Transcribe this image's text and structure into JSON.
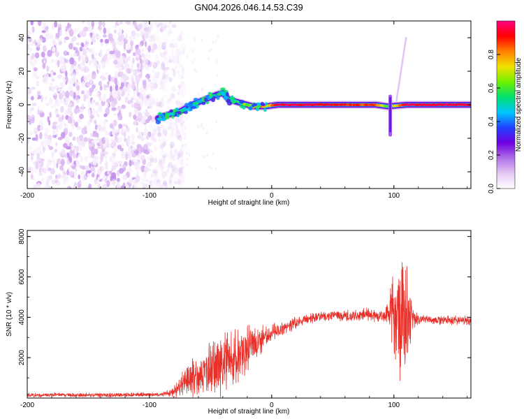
{
  "figure_title": "GN04.2026.046.14.53.C39",
  "colors": {
    "accent": "#e8302a",
    "axis": "#000000",
    "background": "#ffffff"
  },
  "colorbar": {
    "label": "Normalized spectral amplitude",
    "ticks": [
      "0.0",
      "0.2",
      "0.4",
      "0.6",
      "0.8"
    ],
    "range": [
      0,
      1
    ],
    "colormap": [
      "#ffffff",
      "#e4c8f4",
      "#b070e8",
      "#7000e0",
      "#2040ff",
      "#00c8ff",
      "#00e070",
      "#70f000",
      "#f0e000",
      "#ff8000",
      "#ff0000",
      "#ff0080"
    ]
  },
  "chart_data": [
    {
      "type": "heatmap",
      "name": "spectrogram",
      "title": "GN04.2026.046.14.53.C39",
      "xlabel": "Height of straight line (km)",
      "ylabel": "Frequency (Hz)",
      "xlim": [
        -200,
        163
      ],
      "ylim": [
        -50,
        50
      ],
      "xticks": [
        -200,
        -100,
        0,
        100
      ],
      "xtick_labels": [
        "-200",
        "-100",
        "0",
        "100"
      ],
      "yticks": [
        -40,
        -20,
        0,
        20,
        40
      ],
      "ytick_labels": [
        "-40",
        "-20",
        "0",
        "20",
        "40"
      ],
      "noise_region": {
        "x_range": [
          -200,
          -82
        ],
        "y_range": [
          -50,
          50
        ],
        "amplitude": "0.0-0.1"
      },
      "signal_track": [
        {
          "x": -93,
          "y": -8,
          "amp": 0.35
        },
        {
          "x": -85,
          "y": -6,
          "amp": 0.45
        },
        {
          "x": -75,
          "y": -4,
          "amp": 0.45
        },
        {
          "x": -65,
          "y": 0,
          "amp": 0.5
        },
        {
          "x": -55,
          "y": 3,
          "amp": 0.45
        },
        {
          "x": -45,
          "y": 6,
          "amp": 0.4
        },
        {
          "x": -40,
          "y": 7,
          "amp": 0.45
        },
        {
          "x": -35,
          "y": 3,
          "amp": 0.5
        },
        {
          "x": -25,
          "y": 1,
          "amp": 0.6
        },
        {
          "x": -15,
          "y": -1,
          "amp": 0.7
        },
        {
          "x": -5,
          "y": -1,
          "amp": 0.75
        },
        {
          "x": 5,
          "y": 0,
          "amp": 0.95
        },
        {
          "x": 30,
          "y": 0,
          "amp": 0.95
        },
        {
          "x": 60,
          "y": 0,
          "amp": 0.9
        },
        {
          "x": 85,
          "y": 0,
          "amp": 0.85
        },
        {
          "x": 95,
          "y": -1,
          "amp": 0.6
        },
        {
          "x": 110,
          "y": 0,
          "amp": 0.95
        },
        {
          "x": 140,
          "y": 0,
          "amp": 0.95
        },
        {
          "x": 163,
          "y": 0,
          "amp": 0.95
        }
      ],
      "features": [
        {
          "name": "vertical-streak",
          "x": 97,
          "y_range": [
            -18,
            5
          ],
          "amp": 0.3
        },
        {
          "name": "diagonal-streak",
          "x_range": [
            102,
            110
          ],
          "y_range": [
            2,
            40
          ],
          "amp": 0.1
        }
      ]
    },
    {
      "type": "line",
      "name": "snr",
      "xlabel": "Height of straight line (km)",
      "ylabel": "SNR (10 * v/v)",
      "xlim": [
        -200,
        163
      ],
      "ylim": [
        0,
        8300
      ],
      "xticks": [
        -200,
        -100,
        0,
        100
      ],
      "xtick_labels": [
        "-200",
        "-100",
        "0",
        "100"
      ],
      "yticks": [
        2000,
        4000,
        6000,
        8000
      ],
      "ytick_labels": [
        "2000",
        "4000",
        "6000",
        "8000"
      ],
      "series": [
        {
          "name": "SNR",
          "color": "#e8302a",
          "x": [
            -200,
            -180,
            -160,
            -140,
            -120,
            -100,
            -90,
            -80,
            -75,
            -70,
            -65,
            -60,
            -55,
            -50,
            -45,
            -40,
            -35,
            -30,
            -25,
            -20,
            -15,
            -10,
            -5,
            0,
            10,
            20,
            30,
            40,
            50,
            60,
            70,
            80,
            90,
            95,
            100,
            103,
            106,
            108,
            110,
            113,
            116,
            120,
            130,
            140,
            150,
            163
          ],
          "y": [
            150,
            150,
            150,
            150,
            160,
            170,
            180,
            300,
            600,
            900,
            1100,
            1000,
            1200,
            1400,
            1600,
            1800,
            1900,
            2100,
            2300,
            2500,
            2700,
            2900,
            3000,
            3200,
            3450,
            3700,
            3900,
            4000,
            4100,
            4050,
            4100,
            4150,
            4000,
            4200,
            4300,
            4100,
            4000,
            4200,
            4100,
            4000,
            3900,
            3900,
            3850,
            3850,
            3850,
            3850
          ],
          "noise_amplitude": [
            120,
            120,
            120,
            120,
            120,
            120,
            120,
            250,
            700,
            900,
            1300,
            1000,
            1300,
            1500,
            1700,
            1900,
            1800,
            1700,
            1500,
            1300,
            1000,
            800,
            600,
            500,
            400,
            350,
            300,
            300,
            350,
            350,
            350,
            400,
            400,
            600,
            2600,
            3400,
            3700,
            3600,
            3300,
            2000,
            600,
            300,
            250,
            250,
            250,
            250
          ]
        }
      ]
    }
  ]
}
